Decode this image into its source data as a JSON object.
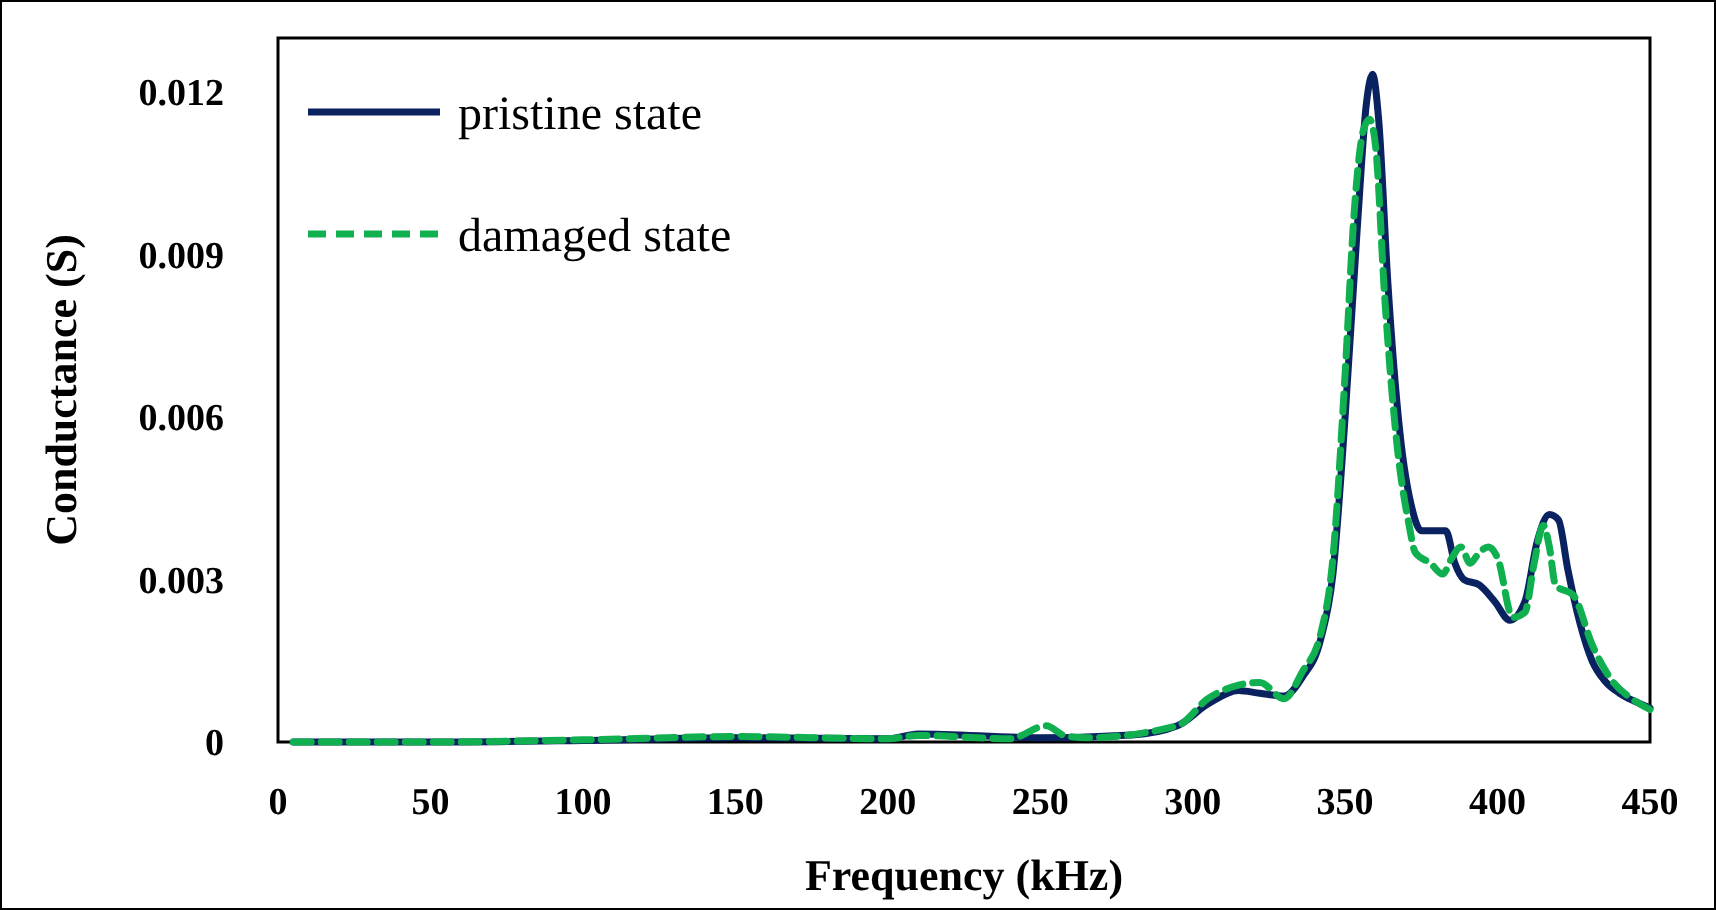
{
  "chart_data": {
    "type": "line",
    "xlabel": "Frequency (kHz)",
    "ylabel": "Conductance (S)",
    "xlim": [
      0,
      450
    ],
    "xticks": [
      0,
      50,
      100,
      150,
      200,
      250,
      300,
      350,
      400,
      450
    ],
    "ylim": [
      0,
      0.013
    ],
    "yticks": [
      {
        "value": 0,
        "label": "0"
      },
      0.003,
      0.006,
      0.009,
      0.012
    ],
    "grid": false,
    "legend": "top left",
    "series": [
      {
        "name": "pristine state",
        "color": "#0b2260",
        "line_style": "solid",
        "x": [
          5,
          50,
          100,
          150,
          200,
          210,
          250,
          280,
          295,
          305,
          315,
          322,
          330,
          336,
          342,
          346,
          350,
          354,
          357,
          359,
          361,
          364,
          368,
          372,
          375,
          380,
          383,
          386,
          389,
          394,
          399,
          404,
          409,
          413,
          417,
          420,
          423,
          427,
          431,
          435,
          440,
          445,
          450
        ],
        "values": [
          0,
          0,
          3e-05,
          8e-05,
          6e-05,
          0.00015,
          8e-05,
          0.00013,
          0.0003,
          0.0007,
          0.00095,
          0.0009,
          0.00085,
          0.0012,
          0.0019,
          0.0031,
          0.006,
          0.0095,
          0.0118,
          0.01233,
          0.0115,
          0.0085,
          0.0057,
          0.0043,
          0.0039,
          0.0039,
          0.0039,
          0.0033,
          0.003,
          0.0029,
          0.0026,
          0.00225,
          0.0026,
          0.0037,
          0.0042,
          0.0041,
          0.0032,
          0.0022,
          0.0015,
          0.00114,
          0.0009,
          0.00075,
          0.00063
        ]
      },
      {
        "name": "damaged state",
        "color": "#10b050",
        "line_style": "dashed",
        "x": [
          5,
          50,
          100,
          150,
          200,
          210,
          240,
          252,
          258,
          265,
          295,
          305,
          315,
          322,
          330,
          336,
          342,
          346,
          350,
          353,
          356,
          358,
          360,
          363,
          367,
          371,
          373,
          378,
          382,
          385,
          388,
          391,
          394,
          397,
          400,
          405,
          409,
          412,
          415,
          417,
          419,
          425,
          431,
          438,
          444,
          450
        ],
        "values": [
          0,
          0,
          4e-05,
          0.0001,
          6e-05,
          0.00012,
          6e-05,
          0.0003,
          0.00012,
          8e-05,
          0.0003,
          0.0008,
          0.00105,
          0.0011,
          0.0008,
          0.0013,
          0.002,
          0.0034,
          0.0068,
          0.0098,
          0.0113,
          0.0115,
          0.011,
          0.0082,
          0.0055,
          0.004,
          0.0035,
          0.0033,
          0.0031,
          0.0034,
          0.0036,
          0.0033,
          0.0035,
          0.0036,
          0.0034,
          0.0023,
          0.0024,
          0.0033,
          0.004,
          0.0036,
          0.0029,
          0.0027,
          0.0018,
          0.0011,
          0.0008,
          0.0006
        ]
      }
    ]
  }
}
